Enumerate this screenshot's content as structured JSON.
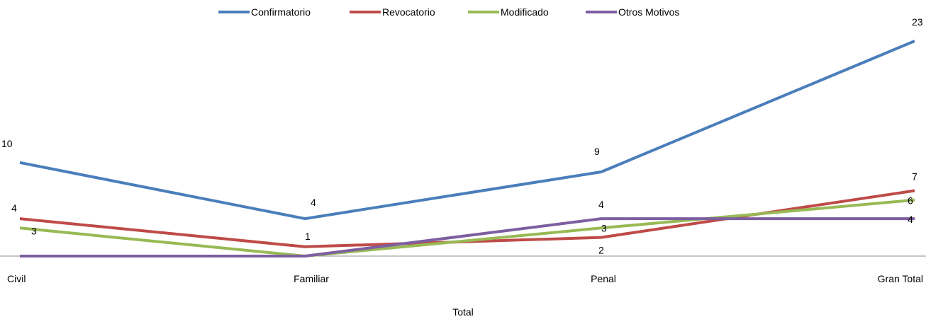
{
  "chart_data": {
    "type": "line",
    "title": "",
    "xlabel": "Total",
    "ylabel": "",
    "categories": [
      "Civil",
      "Familiar",
      "Penal",
      "Gran Total"
    ],
    "ylim": [
      0,
      23
    ],
    "grid": false,
    "legend": "top-center",
    "series": [
      {
        "name": "Confirmatorio",
        "color": "#4a7ebb",
        "values": [
          10,
          4,
          9,
          23
        ]
      },
      {
        "name": "Revocatorio",
        "color": "#be4b48",
        "values": [
          4,
          1,
          2,
          7
        ]
      },
      {
        "name": "Modificado",
        "color": "#98b954",
        "values": [
          3,
          0,
          3,
          6
        ]
      },
      {
        "name": "Otros Motivos",
        "color": "#7d5fa0",
        "values": [
          0,
          0,
          4,
          4
        ]
      }
    ],
    "data_labels": [
      {
        "series": 0,
        "point": 0,
        "text": "10"
      },
      {
        "series": 0,
        "point": 1,
        "text": "4"
      },
      {
        "series": 0,
        "point": 2,
        "text": "9"
      },
      {
        "series": 0,
        "point": 3,
        "text": "23"
      },
      {
        "series": 1,
        "point": 0,
        "text": "4"
      },
      {
        "series": 1,
        "point": 1,
        "text": "1"
      },
      {
        "series": 1,
        "point": 2,
        "text": "2"
      },
      {
        "series": 1,
        "point": 3,
        "text": "7"
      },
      {
        "series": 2,
        "point": 0,
        "text": "3"
      },
      {
        "series": 2,
        "point": 2,
        "text": "3"
      },
      {
        "series": 2,
        "point": 3,
        "text": "6"
      },
      {
        "series": 3,
        "point": 2,
        "text": "4"
      },
      {
        "series": 3,
        "point": 3,
        "text": "4"
      }
    ]
  }
}
